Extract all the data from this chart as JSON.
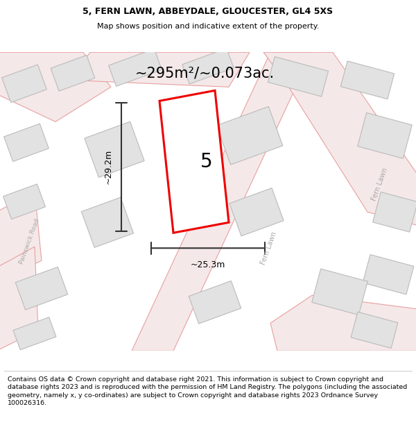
{
  "title": "5, FERN LAWN, ABBEYDALE, GLOUCESTER, GL4 5XS",
  "subtitle": "Map shows position and indicative extent of the property.",
  "area_label": "~295m²/~0.073ac.",
  "property_number": "5",
  "dim_width": "~25.3m",
  "dim_height": "~29.2m",
  "footer": "Contains OS data © Crown copyright and database right 2021. This information is subject to Crown copyright and database rights 2023 and is reproduced with the permission of HM Land Registry. The polygons (including the associated geometry, namely x, y co-ordinates) are subject to Crown copyright and database rights 2023 Ordnance Survey 100026316.",
  "map_bg": "#f8f8f8",
  "road_line_color": "#e8a0a0",
  "road_fill_color": "#f5e8e8",
  "building_color": "#e2e2e2",
  "building_edge": "#bbbbbb",
  "property_color": "#ee0000",
  "street_color": "#bbbbbb",
  "title_fontsize": 9,
  "subtitle_fontsize": 8,
  "footer_fontsize": 6.8,
  "area_fontsize": 15,
  "dim_fontsize": 9,
  "number_fontsize": 20
}
